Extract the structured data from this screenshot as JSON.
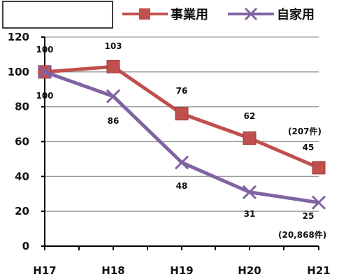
{
  "chart_data": {
    "type": "line",
    "categories": [
      "H17",
      "H18",
      "H19",
      "H20",
      "H21"
    ],
    "ylim": [
      0,
      120
    ],
    "yticks": [
      0,
      20,
      40,
      60,
      80,
      100,
      120
    ],
    "grid": true,
    "legend_position": "top-right",
    "series": [
      {
        "name": "事業用",
        "color": "#c0504d",
        "marker": "square",
        "values": [
          100,
          103,
          76,
          62,
          45
        ],
        "labels": [
          "100",
          "103",
          "76",
          "62",
          "45"
        ]
      },
      {
        "name": "自家用",
        "color": "#8064a2",
        "marker": "x",
        "values": [
          100,
          86,
          48,
          31,
          25
        ],
        "labels": [
          "100",
          "86",
          "48",
          "31",
          "25"
        ]
      }
    ],
    "annotations": [
      "(207件)",
      "(20,868件)"
    ]
  }
}
